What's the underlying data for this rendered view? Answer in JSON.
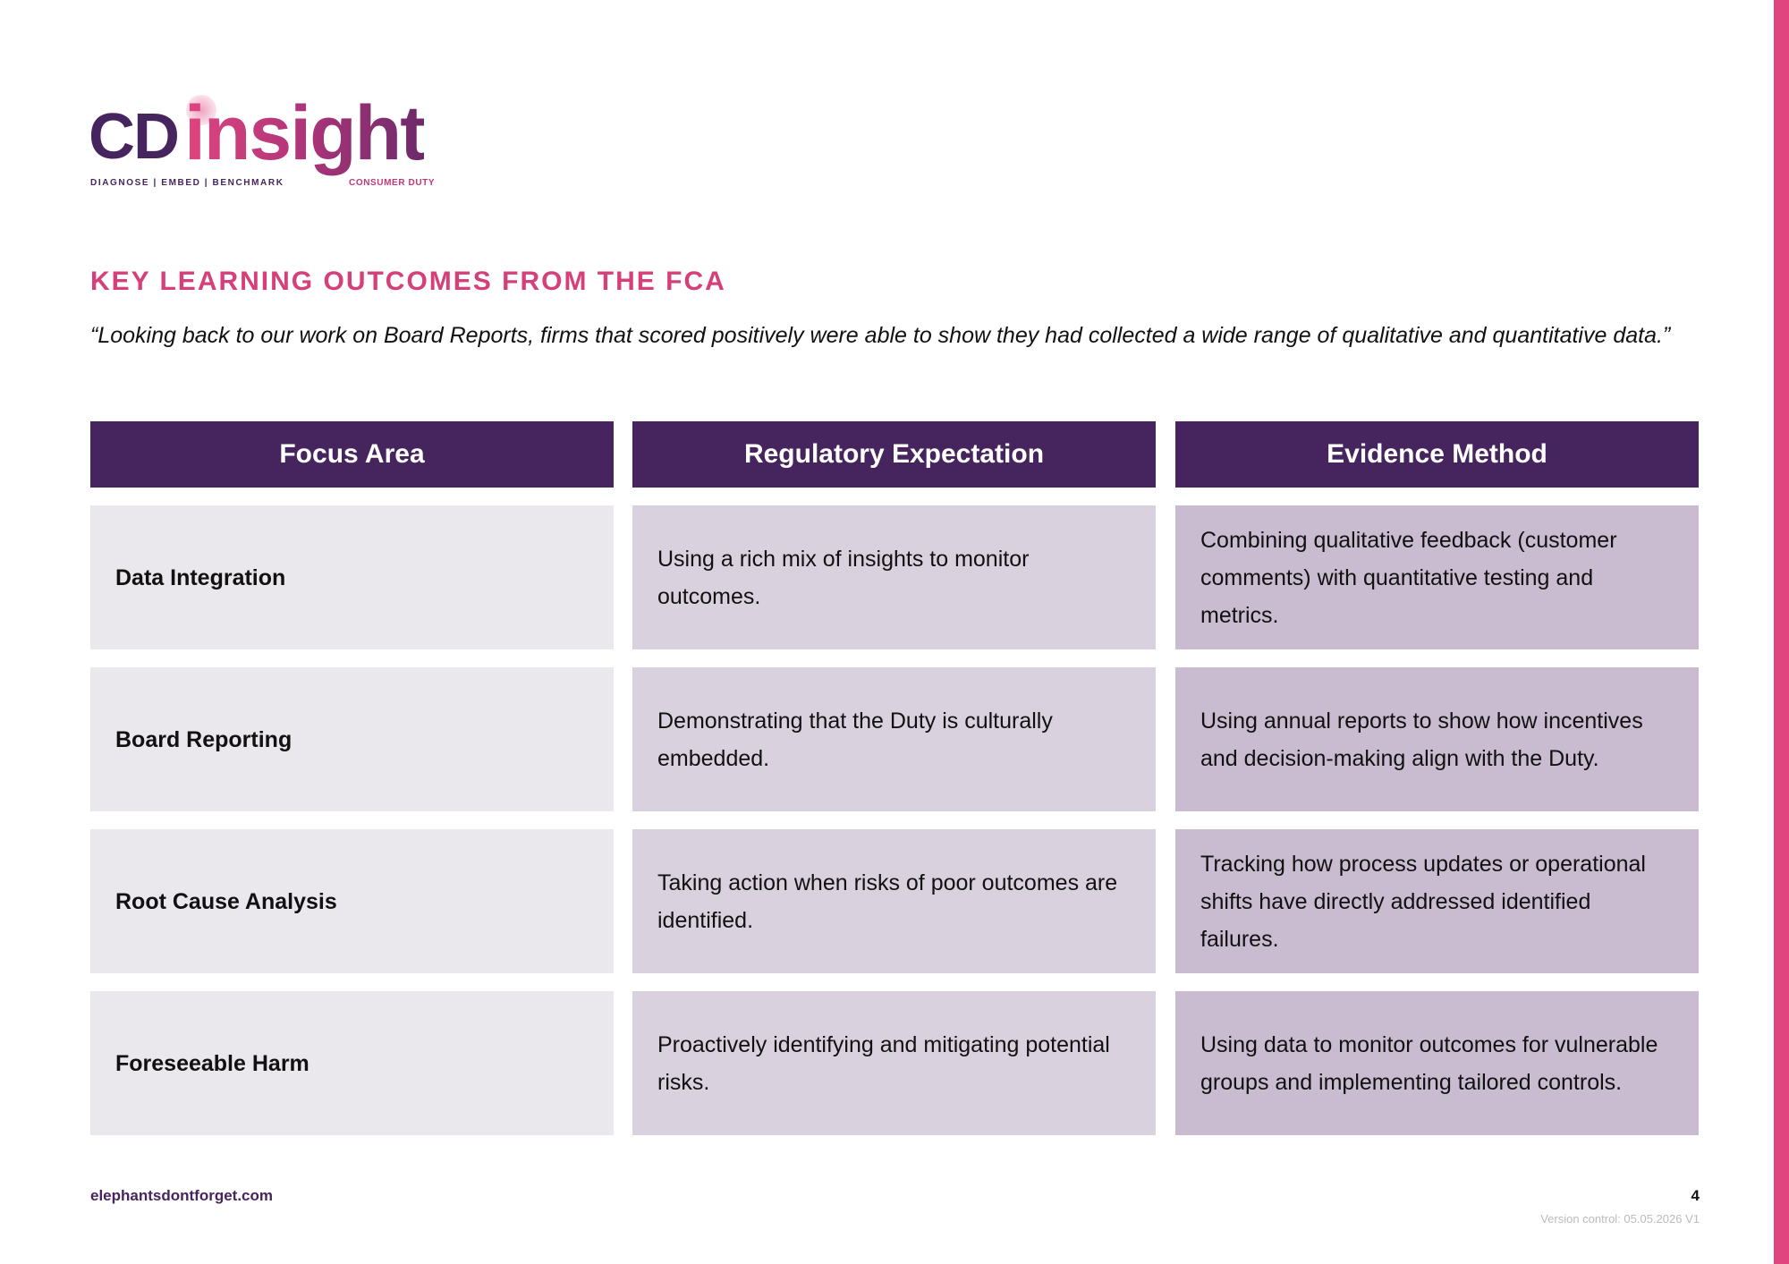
{
  "logo": {
    "cd": "CD",
    "insight": "insight",
    "tagline": "DIAGNOSE | EMBED | BENCHMARK",
    "subtitle": "CONSUMER DUTY"
  },
  "heading": "KEY LEARNING OUTCOMES FROM THE FCA",
  "quote": "“Looking back to our work on Board Reports, firms that scored positively were able to show they had collected a wide range of qualitative and quantitative data.”",
  "table": {
    "headers": [
      "Focus Area",
      "Regulatory Expectation",
      "Evidence Method"
    ],
    "rows": [
      [
        "Data Integration",
        "Using a rich mix of insights to monitor outcomes.",
        "Combining qualitative feedback (customer comments) with quantitative testing and metrics."
      ],
      [
        "Board Reporting",
        "Demonstrating that the Duty is culturally embedded.",
        "Using annual reports to show how incentives and decision-making align with the Duty."
      ],
      [
        "Root Cause Analysis",
        "Taking action when risks of poor outcomes are identified.",
        "Tracking how process updates or operational shifts have directly addressed identified failures."
      ],
      [
        "Foreseeable Harm",
        "Proactively identifying and mitigating potential risks.",
        "Using data to monitor outcomes for vulnerable groups and implementing tailored controls."
      ]
    ]
  },
  "footer": {
    "website": "elephantsdontforget.com",
    "page": "4",
    "version": "Version control: 05.05.2026 V1"
  }
}
